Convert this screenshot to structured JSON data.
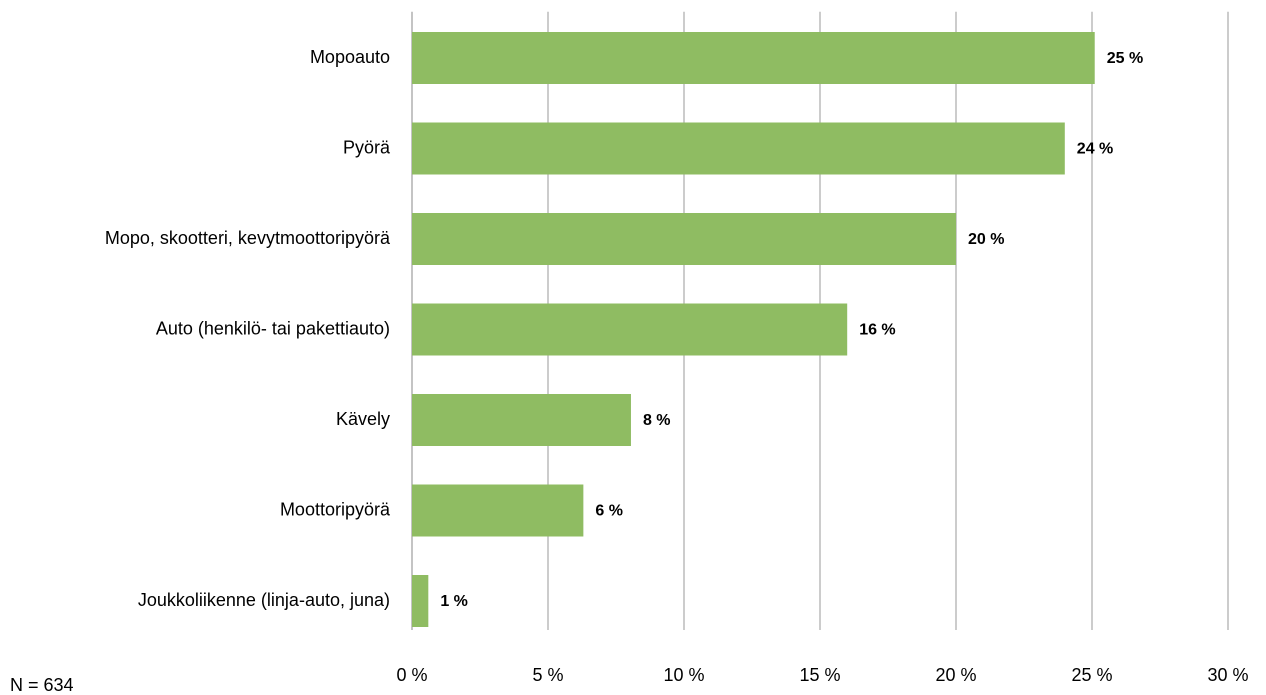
{
  "chart_data": {
    "type": "bar",
    "orientation": "horizontal",
    "categories": [
      "Mopoauto",
      "Pyörä",
      "Mopo, skootteri, kevytmoottoripyörä",
      "Auto (henkilö- tai pakettiauto)",
      "Kävely",
      "Moottoripyörä",
      "Joukkoliikenne (linja-auto, juna)"
    ],
    "values": [
      25.1,
      24.0,
      20.0,
      16.0,
      8.05,
      6.3,
      0.6
    ],
    "value_labels": [
      "25 %",
      "24 %",
      "20 %",
      "16 %",
      "8 %",
      "6 %",
      "1 %"
    ],
    "color": "#8fbc62",
    "xlim": [
      0,
      30
    ],
    "xticks": [
      {
        "value": 0,
        "label": "0 %"
      },
      {
        "value": 5,
        "label": "5 %"
      },
      {
        "value": 10,
        "label": "10 %"
      },
      {
        "value": 15,
        "label": "15 %"
      },
      {
        "value": 20,
        "label": "20 %"
      },
      {
        "value": 25,
        "label": "25 %"
      },
      {
        "value": 30,
        "label": "30 %"
      }
    ],
    "grid": true,
    "note": "N = 634"
  }
}
